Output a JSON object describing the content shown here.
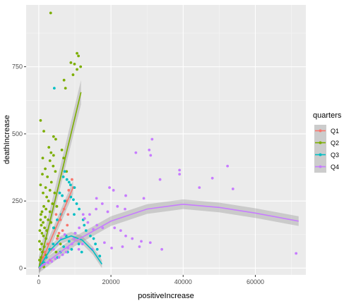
{
  "chart_data": {
    "type": "scatter",
    "xlabel": "positiveIncrease",
    "ylabel": "deathIncrease",
    "xlim": [
      -3500,
      74000
    ],
    "ylim": [
      -25,
      980
    ],
    "x_ticks": [
      {
        "value": 0,
        "label": "0"
      },
      {
        "value": 20000,
        "label": "20000"
      },
      {
        "value": 40000,
        "label": "40000"
      },
      {
        "value": 60000,
        "label": "60000"
      }
    ],
    "y_ticks": [
      {
        "value": 0,
        "label": "0"
      },
      {
        "value": 250,
        "label": "250"
      },
      {
        "value": 500,
        "label": "500"
      },
      {
        "value": 750,
        "label": "750"
      }
    ],
    "grid": true,
    "background": "#EBEBEB",
    "legend": {
      "title": "quarters",
      "placement": "right",
      "entries": [
        {
          "label": "Q1",
          "color": "#F8766D"
        },
        {
          "label": "Q2",
          "color": "#7CAE00"
        },
        {
          "label": "Q3",
          "color": "#00BFC4"
        },
        {
          "label": "Q4",
          "color": "#C77CFF"
        }
      ]
    },
    "series": [
      {
        "name": "Q1",
        "color": "#F8766D",
        "points": [
          [
            1200,
            40
          ],
          [
            2500,
            90
          ],
          [
            3400,
            70
          ],
          [
            4200,
            150
          ],
          [
            5100,
            110
          ],
          [
            6000,
            180
          ],
          [
            7000,
            220
          ],
          [
            7600,
            250
          ],
          [
            8300,
            290
          ],
          [
            9200,
            330
          ],
          [
            9600,
            300
          ],
          [
            6600,
            140
          ],
          [
            8100,
            200
          ],
          [
            3100,
            30
          ],
          [
            1700,
            60
          ],
          [
            4800,
            200
          ],
          [
            5600,
            130
          ],
          [
            7900,
            160
          ]
        ],
        "trend": {
          "type": "linear",
          "points": [
            [
              0,
              0
            ],
            [
              9500,
              300
            ]
          ],
          "band": 25
        }
      },
      {
        "name": "Q2",
        "color": "#7CAE00",
        "points": [
          [
            3300,
            950
          ],
          [
            10600,
            800
          ],
          [
            11000,
            790
          ],
          [
            8900,
            765
          ],
          [
            9900,
            760
          ],
          [
            11600,
            750
          ],
          [
            9500,
            720
          ],
          [
            10600,
            740
          ],
          [
            7400,
            670
          ],
          [
            7000,
            700
          ],
          [
            500,
            550
          ],
          [
            1400,
            510
          ],
          [
            4100,
            490
          ],
          [
            4700,
            480
          ],
          [
            2800,
            450
          ],
          [
            3400,
            430
          ],
          [
            4100,
            420
          ],
          [
            1100,
            410
          ],
          [
            3100,
            400
          ],
          [
            4000,
            380
          ],
          [
            1800,
            370
          ],
          [
            4600,
            360
          ],
          [
            1000,
            350
          ],
          [
            2400,
            340
          ],
          [
            3500,
            320
          ],
          [
            500,
            310
          ],
          [
            1900,
            300
          ],
          [
            3100,
            290
          ],
          [
            4400,
            280
          ],
          [
            6400,
            440
          ],
          [
            6900,
            410
          ],
          [
            7700,
            360
          ],
          [
            1200,
            280
          ],
          [
            2200,
            265
          ],
          [
            2700,
            250
          ],
          [
            3800,
            240
          ],
          [
            5000,
            230
          ],
          [
            1400,
            230
          ],
          [
            2000,
            220
          ],
          [
            900,
            210
          ],
          [
            3100,
            210
          ],
          [
            600,
            200
          ],
          [
            1800,
            190
          ],
          [
            2600,
            180
          ],
          [
            500,
            180
          ],
          [
            1200,
            170
          ],
          [
            3400,
            170
          ],
          [
            700,
            160
          ],
          [
            1600,
            150
          ],
          [
            2200,
            140
          ],
          [
            300,
            140
          ],
          [
            900,
            130
          ],
          [
            1300,
            120
          ],
          [
            2000,
            110
          ],
          [
            200,
            100
          ],
          [
            800,
            90
          ],
          [
            1500,
            80
          ],
          [
            400,
            70
          ],
          [
            1000,
            60
          ],
          [
            1800,
            50
          ],
          [
            600,
            40
          ],
          [
            200,
            30
          ],
          [
            1100,
            20
          ],
          [
            400,
            10
          ],
          [
            1400,
            5
          ],
          [
            4200,
            150
          ],
          [
            5300,
            120
          ],
          [
            6000,
            90
          ],
          [
            4800,
            60
          ]
        ],
        "trend": {
          "type": "linear",
          "points": [
            [
              0,
              0
            ],
            [
              11700,
              655
            ]
          ],
          "band": 45
        }
      },
      {
        "name": "Q3",
        "color": "#00BFC4",
        "points": [
          [
            4300,
            670
          ],
          [
            7200,
            360
          ],
          [
            6800,
            340
          ],
          [
            7800,
            330
          ],
          [
            8400,
            320
          ],
          [
            8800,
            310
          ],
          [
            9900,
            300
          ],
          [
            9600,
            255
          ],
          [
            7200,
            250
          ],
          [
            6500,
            270
          ],
          [
            5800,
            280
          ],
          [
            8900,
            265
          ],
          [
            10500,
            240
          ],
          [
            11200,
            220
          ],
          [
            9800,
            200
          ],
          [
            12300,
            180
          ],
          [
            12600,
            160
          ],
          [
            13100,
            140
          ],
          [
            14300,
            120
          ],
          [
            15200,
            110
          ],
          [
            15700,
            90
          ],
          [
            16200,
            70
          ],
          [
            16900,
            45
          ],
          [
            6200,
            200
          ],
          [
            5100,
            180
          ],
          [
            4100,
            150
          ],
          [
            7600,
            120
          ],
          [
            8400,
            100
          ],
          [
            10100,
            130
          ],
          [
            11100,
            90
          ],
          [
            9100,
            70
          ],
          [
            8000,
            60
          ],
          [
            6900,
            80
          ],
          [
            6000,
            60
          ],
          [
            5200,
            40
          ],
          [
            4000,
            90
          ],
          [
            3000,
            70
          ],
          [
            2100,
            40
          ],
          [
            1500,
            20
          ],
          [
            11900,
            60
          ]
        ],
        "trend": {
          "type": "quadratic",
          "points": [
            [
              0,
              0
            ],
            [
              3000,
              65
            ],
            [
              6000,
              105
            ],
            [
              9000,
              120
            ],
            [
              12000,
              105
            ],
            [
              15000,
              65
            ],
            [
              17500,
              15
            ]
          ],
          "band": 15
        }
      },
      {
        "name": "Q4",
        "color": "#C77CFF",
        "points": [
          [
            71300,
            55
          ],
          [
            31400,
            480
          ],
          [
            30600,
            440
          ],
          [
            26900,
            430
          ],
          [
            31000,
            420
          ],
          [
            52300,
            380
          ],
          [
            39000,
            365
          ],
          [
            39000,
            350
          ],
          [
            48100,
            335
          ],
          [
            33600,
            330
          ],
          [
            44500,
            300
          ],
          [
            53800,
            295
          ],
          [
            19600,
            300
          ],
          [
            24100,
            270
          ],
          [
            29100,
            260
          ],
          [
            16000,
            260
          ],
          [
            17600,
            240
          ],
          [
            21800,
            230
          ],
          [
            23900,
            220
          ],
          [
            15900,
            220
          ],
          [
            19100,
            210
          ],
          [
            14100,
            200
          ],
          [
            12300,
            200
          ],
          [
            12700,
            185
          ],
          [
            13600,
            170
          ],
          [
            16100,
            160
          ],
          [
            17700,
            150
          ],
          [
            21000,
            150
          ],
          [
            22700,
            140
          ],
          [
            24100,
            120
          ],
          [
            25900,
            110
          ],
          [
            28400,
            100
          ],
          [
            30900,
            95
          ],
          [
            27900,
            80
          ],
          [
            34100,
            70
          ],
          [
            23200,
            80
          ],
          [
            20200,
            75
          ],
          [
            18200,
            95
          ],
          [
            11200,
            150
          ],
          [
            10100,
            130
          ],
          [
            9800,
            110
          ],
          [
            9200,
            90
          ],
          [
            8100,
            75
          ],
          [
            7600,
            60
          ],
          [
            6600,
            50
          ],
          [
            5600,
            40
          ],
          [
            4600,
            35
          ],
          [
            3600,
            25
          ],
          [
            2600,
            20
          ],
          [
            1600,
            15
          ],
          [
            1000,
            10
          ],
          [
            4100,
            70
          ],
          [
            5100,
            90
          ],
          [
            6200,
            110
          ],
          [
            7200,
            125
          ],
          [
            20700,
            290
          ],
          [
            15100,
            145
          ],
          [
            12100,
            90
          ],
          [
            11100,
            70
          ],
          [
            14800,
            70
          ]
        ],
        "trend": {
          "type": "quadratic",
          "points": [
            [
              0,
              0
            ],
            [
              10000,
              100
            ],
            [
              20000,
              175
            ],
            [
              30000,
              220
            ],
            [
              40000,
              238
            ],
            [
              50000,
              226
            ],
            [
              60000,
              205
            ],
            [
              72000,
              175
            ]
          ],
          "band": 18
        }
      }
    ]
  }
}
